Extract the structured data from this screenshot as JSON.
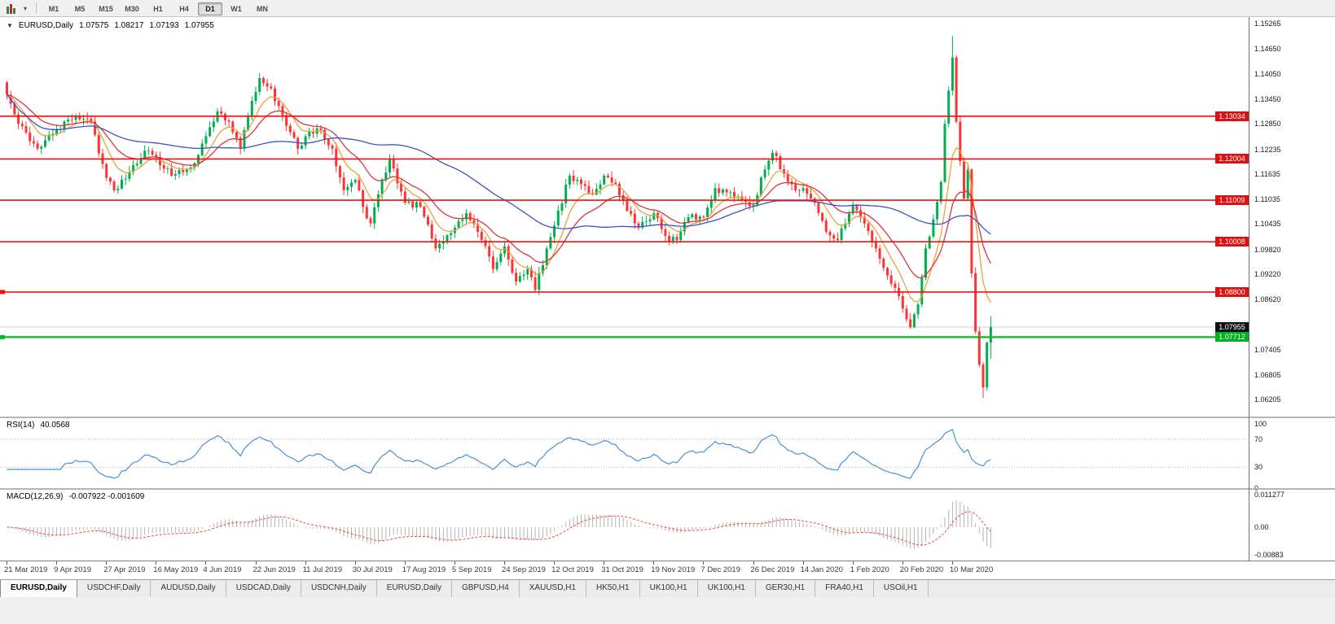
{
  "toolbar": {
    "timeframes": [
      "M1",
      "M5",
      "M15",
      "M30",
      "H1",
      "H4",
      "D1",
      "W1",
      "MN"
    ],
    "active_timeframe": "D1"
  },
  "chart_header": {
    "collapse_icon": "down-triangle-icon",
    "symbol": "EURUSD,Daily",
    "open": "1.07575",
    "high": "1.08217",
    "low": "1.07193",
    "close": "1.07955"
  },
  "price_axis": {
    "ticks": [
      "1.15265",
      "1.14650",
      "1.14050",
      "1.13450",
      "1.12850",
      "1.12235",
      "1.11635",
      "1.11035",
      "1.10435",
      "1.09820",
      "1.09220",
      "1.08620",
      "1.07405",
      "1.06805",
      "1.06205"
    ]
  },
  "time_axis": {
    "labels": [
      "21 Mar 2019",
      "9 Apr 2019",
      "27 Apr 2019",
      "16 May 2019",
      "4 Jun 2019",
      "22 Jun 2019",
      "11 Jul 2019",
      "30 Jul 2019",
      "17 Aug 2019",
      "5 Sep 2019",
      "24 Sep 2019",
      "12 Oct 2019",
      "31 Oct 2019",
      "19 Nov 2019",
      "7 Dec 2019",
      "26 Dec 2019",
      "14 Jan 2020",
      "1 Feb 2020",
      "20 Feb 2020",
      "10 Mar 2020"
    ]
  },
  "panels": {
    "rsi": {
      "title": "RSI(14)",
      "value": "40.0568",
      "axis": [
        "100",
        "70",
        "30",
        "0"
      ],
      "levels": [
        70,
        30
      ]
    },
    "macd": {
      "title": "MACD(12,26,9)",
      "value": "-0.007922 -0.001609",
      "axis": [
        "0.011277",
        "0.00",
        "-0.00883"
      ]
    }
  },
  "tabs": {
    "active_index": 0,
    "items": [
      "EURUSD,Daily",
      "USDCHF,Daily",
      "AUDUSD,Daily",
      "USDCAD,Daily",
      "USDCNH,Daily",
      "EURUSD,Daily",
      "GBPUSD,H4",
      "XAUUSD,H1",
      "HK50,H1",
      "UK100,H1",
      "UK100,H1",
      "GER30,H1",
      "FRA40,H1",
      "USOil,H1"
    ],
    "note": ""
  },
  "chart_data": {
    "type": "candlestick",
    "symbol": "EURUSD",
    "timeframe": "Daily",
    "title": "EURUSD,Daily",
    "ohlc_current": {
      "open": 1.07575,
      "high": 1.08217,
      "low": 1.07193,
      "close": 1.07955
    },
    "y_range": {
      "top": 1.1542,
      "bottom": 1.058
    },
    "candle_count": 258,
    "seed": 42,
    "label_candle_step": 13,
    "price_path": [
      [
        0,
        1.1355
      ],
      [
        3,
        1.1285
      ],
      [
        8,
        1.1225
      ],
      [
        13,
        1.127
      ],
      [
        18,
        1.1305
      ],
      [
        22,
        1.129
      ],
      [
        26,
        1.1155
      ],
      [
        28,
        1.1125
      ],
      [
        33,
        1.1185
      ],
      [
        36,
        1.122
      ],
      [
        39,
        1.1205
      ],
      [
        43,
        1.116
      ],
      [
        48,
        1.118
      ],
      [
        52,
        1.1255
      ],
      [
        55,
        1.1315
      ],
      [
        58,
        1.129
      ],
      [
        61,
        1.1225
      ],
      [
        64,
        1.134
      ],
      [
        66,
        1.1395
      ],
      [
        69,
        1.137
      ],
      [
        73,
        1.128
      ],
      [
        76,
        1.1225
      ],
      [
        78,
        1.1255
      ],
      [
        82,
        1.127
      ],
      [
        85,
        1.1225
      ],
      [
        88,
        1.1125
      ],
      [
        91,
        1.115
      ],
      [
        93,
        1.1085
      ],
      [
        95,
        1.1045
      ],
      [
        97,
        1.1115
      ],
      [
        100,
        1.12
      ],
      [
        104,
        1.1095
      ],
      [
        108,
        1.1085
      ],
      [
        112,
        1.0985
      ],
      [
        117,
        1.1035
      ],
      [
        120,
        1.107
      ],
      [
        124,
        1.1005
      ],
      [
        127,
        1.0935
      ],
      [
        130,
        1.099
      ],
      [
        133,
        1.0905
      ],
      [
        136,
        1.0935
      ],
      [
        138,
        1.0885
      ],
      [
        141,
        1.0985
      ],
      [
        143,
        1.104
      ],
      [
        147,
        1.116
      ],
      [
        150,
        1.114
      ],
      [
        153,
        1.1115
      ],
      [
        156,
        1.116
      ],
      [
        159,
        1.114
      ],
      [
        162,
        1.1075
      ],
      [
        165,
        1.1035
      ],
      [
        169,
        1.107
      ],
      [
        172,
        1.1015
      ],
      [
        175,
        1.1005
      ],
      [
        178,
        1.106
      ],
      [
        182,
        1.106
      ],
      [
        185,
        1.113
      ],
      [
        188,
        1.112
      ],
      [
        191,
        1.111
      ],
      [
        195,
        1.109
      ],
      [
        198,
        1.1175
      ],
      [
        200,
        1.1215
      ],
      [
        203,
        1.1165
      ],
      [
        206,
        1.1125
      ],
      [
        208,
        1.113
      ],
      [
        211,
        1.1095
      ],
      [
        214,
        1.1025
      ],
      [
        217,
        1.1005
      ],
      [
        221,
        1.109
      ],
      [
        224,
        1.1045
      ],
      [
        227,
        1.0985
      ],
      [
        230,
        1.092
      ],
      [
        233,
        1.087
      ],
      [
        236,
        1.0795
      ],
      [
        238,
        1.085
      ],
      [
        240,
        1.0985
      ],
      [
        242,
        1.1055
      ],
      [
        244,
        1.1145
      ],
      [
        245,
        1.1285
      ],
      [
        246,
        1.1365
      ],
      [
        247,
        1.1445
      ],
      [
        248,
        1.129
      ],
      [
        249,
        1.1195
      ],
      [
        250,
        1.1105
      ],
      [
        251,
        1.1175
      ],
      [
        252,
        1.0925
      ],
      [
        253,
        1.0785
      ],
      [
        254,
        1.0705
      ],
      [
        255,
        1.065
      ],
      [
        256,
        1.0758
      ],
      [
        257,
        1.07955
      ]
    ],
    "wick_overrides": {
      "138": {
        "low": 1.0879
      },
      "247": {
        "high": 1.1496
      },
      "255": {
        "low": 1.0625
      },
      "257": {
        "high": 1.08217,
        "low": 1.07193
      }
    },
    "horizontal_lines": [
      {
        "price": 1.13034,
        "label": "1.13034",
        "color": "#ee1111",
        "width": 1.6,
        "tag": "red",
        "edge_mark": false
      },
      {
        "price": 1.12004,
        "label": "1.12004",
        "color": "#ee1111",
        "width": 1.6,
        "tag": "red",
        "edge_mark": false
      },
      {
        "price": 1.11009,
        "label": "1.11009",
        "color": "#ee1111",
        "width": 1.6,
        "tag": "red",
        "edge_mark": false
      },
      {
        "price": 1.10008,
        "label": "1.10008",
        "color": "#ee1111",
        "width": 1.6,
        "tag": "red",
        "edge_mark": false
      },
      {
        "price": 1.088,
        "label": "1.08800",
        "color": "#ee1111",
        "width": 1.6,
        "tag": "red",
        "edge_mark": true
      },
      {
        "price": 1.07712,
        "label": "1.07712",
        "color": "#00bb22",
        "width": 2.2,
        "tag": "green",
        "edge_mark": true
      }
    ],
    "current_price": {
      "price": 1.07955,
      "label": "1.07955"
    },
    "moving_averages": [
      {
        "period": 8,
        "method": "ema",
        "color": "#e7a33c"
      },
      {
        "period": 18,
        "method": "ema",
        "color": "#d9363c"
      },
      {
        "period": 55,
        "method": "sma",
        "color": "#3853c8"
      }
    ],
    "indicators": [
      {
        "type": "rsi",
        "period": 14,
        "current": 40.0568,
        "color": "#4a90d9",
        "levels": [
          70,
          30
        ],
        "axis_max": 100,
        "axis_min": 0
      },
      {
        "type": "macd",
        "fast": 12,
        "slow": 26,
        "signal": 9,
        "current_main": -0.007922,
        "current_signal": -0.001609,
        "bar_color": "#b2b2b2",
        "signal_color": "#f04848",
        "axis_max": 0.011277,
        "axis_min": -0.00883
      }
    ],
    "colors": {
      "bull": "#00b050",
      "bear": "#ff3333",
      "background": "#ffffff"
    }
  }
}
